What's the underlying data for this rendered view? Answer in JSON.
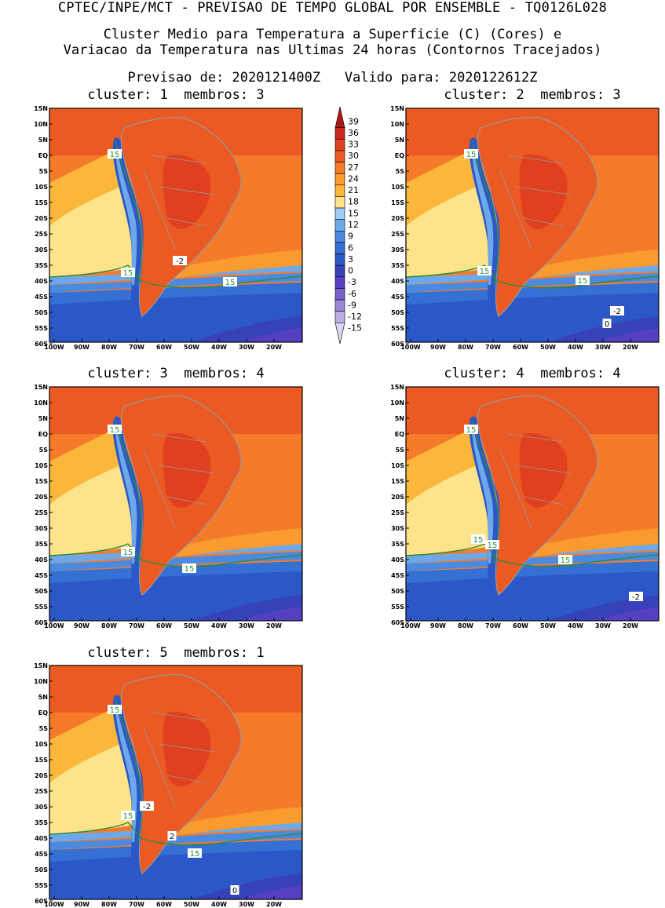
{
  "header": {
    "line1": "CPTEC/INPE/MCT - PREVISAO DE TEMPO GLOBAL POR ENSEMBLE - TQ0126L028",
    "line2": "Cluster Medio para Temperatura a Superficie (C) (Cores) e",
    "line3": "Variacao da Temperatura nas Ultimas 24 horas (Contornos Tracejados)",
    "line4": "Previsao de: 2020121400Z   Valido para: 2020122612Z"
  },
  "axes": {
    "lat_labels": [
      "15N",
      "10N",
      "5N",
      "EQ",
      "5S",
      "10S",
      "15S",
      "20S",
      "25S",
      "30S",
      "35S",
      "40S",
      "45S",
      "50S",
      "55S",
      "60S"
    ],
    "lon_labels": [
      "100W",
      "90W",
      "80W",
      "70W",
      "60W",
      "50W",
      "40W",
      "30W",
      "20W"
    ]
  },
  "colorbar": {
    "labels": [
      "39",
      "36",
      "33",
      "30",
      "27",
      "24",
      "21",
      "18",
      "15",
      "12",
      "9",
      "6",
      "3",
      "0",
      "-3",
      "-6",
      "-9",
      "-12",
      "-15"
    ],
    "colors": [
      "#b31612",
      "#c92a1d",
      "#e0401f",
      "#ec5a24",
      "#f57b2a",
      "#f99b2e",
      "#fbb73b",
      "#fde38a",
      "#9fcaf2",
      "#6da9ea",
      "#4a8ae0",
      "#3570d5",
      "#2c58c7",
      "#3741b8",
      "#5440c0",
      "#7760cb",
      "#9a87d8",
      "#bcaee5",
      "#ddd5f2"
    ]
  },
  "panels": [
    {
      "title": "cluster: 1  membros: 3",
      "labels": [
        {
          "t": "15",
          "x": 83,
          "y": 60
        },
        {
          "t": "15",
          "x": 100,
          "y": 211
        },
        {
          "t": "15",
          "x": 230,
          "y": 223
        },
        {
          "t": "-2",
          "x": 166,
          "y": 196
        }
      ]
    },
    {
      "title": "cluster: 2  membros: 3",
      "labels": [
        {
          "t": "15",
          "x": 83,
          "y": 60
        },
        {
          "t": "15",
          "x": 100,
          "y": 209
        },
        {
          "t": "15",
          "x": 225,
          "y": 221
        },
        {
          "t": "-2",
          "x": 269,
          "y": 260
        },
        {
          "t": "0",
          "x": 256,
          "y": 276
        }
      ]
    },
    {
      "title": "cluster: 3  membros: 4",
      "labels": [
        {
          "t": "15",
          "x": 83,
          "y": 56
        },
        {
          "t": "15",
          "x": 100,
          "y": 212
        },
        {
          "t": "15",
          "x": 178,
          "y": 233
        }
      ]
    },
    {
      "title": "cluster: 4  membros: 4",
      "labels": [
        {
          "t": "15",
          "x": 83,
          "y": 56
        },
        {
          "t": "15",
          "x": 92,
          "y": 196
        },
        {
          "t": "15",
          "x": 110,
          "y": 203
        },
        {
          "t": "15",
          "x": 203,
          "y": 222
        },
        {
          "t": "-2",
          "x": 293,
          "y": 269
        }
      ]
    },
    {
      "title": "cluster: 5  membros: 1",
      "labels": [
        {
          "t": "15",
          "x": 83,
          "y": 58
        },
        {
          "t": "15",
          "x": 100,
          "y": 193
        },
        {
          "t": "15",
          "x": 185,
          "y": 241
        },
        {
          "t": "-2",
          "x": 124,
          "y": 181
        },
        {
          "t": "2",
          "x": 156,
          "y": 219
        },
        {
          "t": "0",
          "x": 236,
          "y": 288
        }
      ]
    }
  ]
}
